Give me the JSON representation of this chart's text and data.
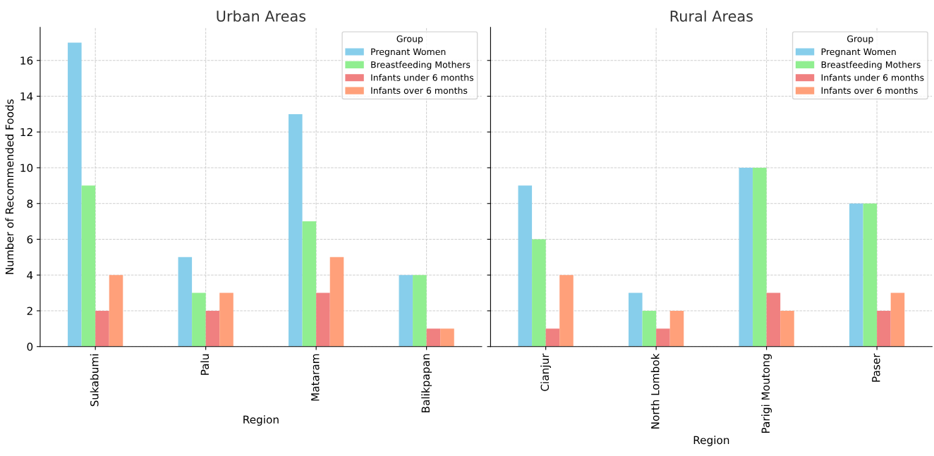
{
  "chart_data": [
    {
      "type": "bar",
      "title": "Urban Areas",
      "xlabel": "Region",
      "ylabel": "Number of Recommended Foods",
      "legend_title": "Group",
      "legend": "top right",
      "grid": true,
      "categories": [
        "Sukabumi",
        "Palu",
        "Mataram",
        "Balikpapan"
      ],
      "ylim": [
        0,
        17.85
      ],
      "yticks": [
        0,
        2,
        4,
        6,
        8,
        10,
        12,
        14,
        16
      ],
      "series": [
        {
          "name": "Pregnant Women",
          "color": "#87ceeb",
          "values": [
            17,
            5,
            13,
            4
          ]
        },
        {
          "name": "Breastfeeding Mothers",
          "color": "#90ee90",
          "values": [
            9,
            3,
            7,
            4
          ]
        },
        {
          "name": "Infants under 6 months",
          "color": "#f08080",
          "values": [
            2,
            2,
            3,
            1
          ]
        },
        {
          "name": "Infants over 6 months",
          "color": "#ffa07a",
          "values": [
            4,
            3,
            5,
            1
          ]
        }
      ]
    },
    {
      "type": "bar",
      "title": "Rural Areas",
      "xlabel": "Region",
      "legend_title": "Group",
      "legend": "top right",
      "grid": true,
      "tick_labels": "x",
      "categories": [
        "Cianjur",
        "North Lombok",
        "Parigi Moutong",
        "Paser"
      ],
      "ylim": [
        0,
        17.85
      ],
      "yticks": [
        0,
        2,
        4,
        6,
        8,
        10,
        12,
        14,
        16
      ],
      "series": [
        {
          "name": "Pregnant Women",
          "color": "#87ceeb",
          "values": [
            9,
            3,
            10,
            8
          ]
        },
        {
          "name": "Breastfeeding Mothers",
          "color": "#90ee90",
          "values": [
            6,
            2,
            10,
            8
          ]
        },
        {
          "name": "Infants under 6 months",
          "color": "#f08080",
          "values": [
            1,
            1,
            3,
            2
          ]
        },
        {
          "name": "Infants over 6 months",
          "color": "#ffa07a",
          "values": [
            4,
            2,
            2,
            3
          ]
        }
      ]
    }
  ]
}
